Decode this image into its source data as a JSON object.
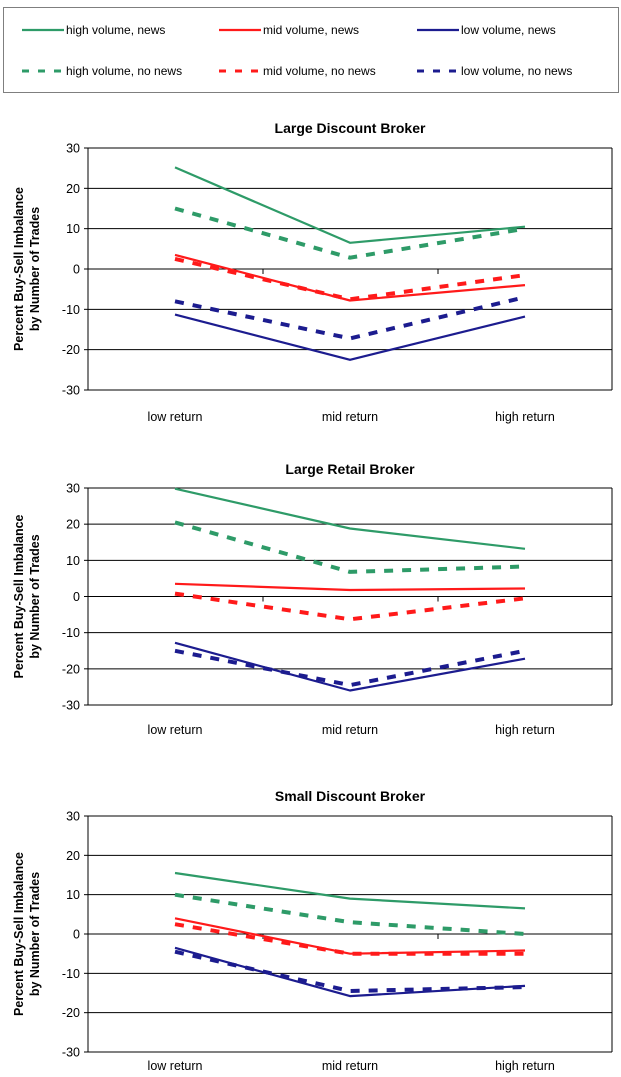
{
  "legend": {
    "items": [
      {
        "label": "high volume, news",
        "color": "#2e9b68",
        "dashed": false
      },
      {
        "label": "mid volume, news",
        "color": "#ff1a1a",
        "dashed": false
      },
      {
        "label": "low volume, news",
        "color": "#1c1c8f",
        "dashed": false
      },
      {
        "label": "high volume, no news",
        "color": "#2e9b68",
        "dashed": true
      },
      {
        "label": "mid volume, no news",
        "color": "#ff1a1a",
        "dashed": true
      },
      {
        "label": "low volume, no news",
        "color": "#1c1c8f",
        "dashed": true
      }
    ]
  },
  "chart_data": [
    {
      "type": "line",
      "title": "Large Discount Broker",
      "ylabel_line1": "Percent Buy-Sell Imbalance",
      "ylabel_line2": "by Number of Trades",
      "categories": [
        "low return",
        "mid return",
        "high return"
      ],
      "ylim": [
        -30,
        30
      ],
      "yticks": [
        30,
        20,
        10,
        0,
        -10,
        -20,
        -30
      ],
      "series": [
        {
          "name": "high volume, news",
          "color": "#2e9b68",
          "dashed": false,
          "values": [
            25.2,
            6.5,
            10.5
          ]
        },
        {
          "name": "mid volume, news",
          "color": "#ff1a1a",
          "dashed": false,
          "values": [
            3.5,
            -7.8,
            -4.0
          ]
        },
        {
          "name": "low volume, news",
          "color": "#1c1c8f",
          "dashed": false,
          "values": [
            -11.3,
            -22.5,
            -11.8
          ]
        },
        {
          "name": "high volume, no news",
          "color": "#2e9b68",
          "dashed": true,
          "values": [
            15.0,
            2.8,
            10.0
          ]
        },
        {
          "name": "mid volume, no news",
          "color": "#ff1a1a",
          "dashed": true,
          "values": [
            2.5,
            -7.5,
            -1.5
          ]
        },
        {
          "name": "low volume, no news",
          "color": "#1c1c8f",
          "dashed": true,
          "values": [
            -8.0,
            -17.2,
            -7.0
          ]
        }
      ]
    },
    {
      "type": "line",
      "title": "Large Retail Broker",
      "ylabel_line1": "Percent Buy-Sell Imbalance",
      "ylabel_line2": "by Number of Trades",
      "categories": [
        "low return",
        "mid return",
        "high return"
      ],
      "ylim": [
        -30,
        30
      ],
      "yticks": [
        30,
        20,
        10,
        0,
        -10,
        -20,
        -30
      ],
      "series": [
        {
          "name": "high volume, news",
          "color": "#2e9b68",
          "dashed": false,
          "values": [
            29.8,
            18.8,
            13.2
          ]
        },
        {
          "name": "mid volume, news",
          "color": "#ff1a1a",
          "dashed": false,
          "values": [
            3.5,
            1.8,
            2.2
          ]
        },
        {
          "name": "low volume, news",
          "color": "#1c1c8f",
          "dashed": false,
          "values": [
            -12.8,
            -26.0,
            -17.2
          ]
        },
        {
          "name": "high volume, no news",
          "color": "#2e9b68",
          "dashed": true,
          "values": [
            20.5,
            6.8,
            8.3
          ]
        },
        {
          "name": "mid volume, no news",
          "color": "#ff1a1a",
          "dashed": true,
          "values": [
            0.8,
            -6.3,
            -0.5
          ]
        },
        {
          "name": "low volume, no news",
          "color": "#1c1c8f",
          "dashed": true,
          "values": [
            -15.0,
            -24.5,
            -15.0
          ]
        }
      ]
    },
    {
      "type": "line",
      "title": "Small Discount Broker",
      "ylabel_line1": "Percent Buy-Sell Imbalance",
      "ylabel_line2": "by Number of Trades",
      "categories": [
        "low return",
        "mid return",
        "high return"
      ],
      "ylim": [
        -30,
        30
      ],
      "yticks": [
        30,
        20,
        10,
        0,
        -10,
        -20,
        -30
      ],
      "series": [
        {
          "name": "high volume, news",
          "color": "#2e9b68",
          "dashed": false,
          "values": [
            15.5,
            9.0,
            6.5
          ]
        },
        {
          "name": "mid volume, news",
          "color": "#ff1a1a",
          "dashed": false,
          "values": [
            4.0,
            -5.0,
            -4.2
          ]
        },
        {
          "name": "low volume, news",
          "color": "#1c1c8f",
          "dashed": false,
          "values": [
            -3.5,
            -15.8,
            -13.2
          ]
        },
        {
          "name": "high volume, no news",
          "color": "#2e9b68",
          "dashed": true,
          "values": [
            10.0,
            3.0,
            0.0
          ]
        },
        {
          "name": "mid volume, no news",
          "color": "#ff1a1a",
          "dashed": true,
          "values": [
            2.5,
            -5.0,
            -5.0
          ]
        },
        {
          "name": "low volume, no news",
          "color": "#1c1c8f",
          "dashed": true,
          "values": [
            -4.5,
            -14.5,
            -13.5
          ]
        }
      ]
    }
  ]
}
